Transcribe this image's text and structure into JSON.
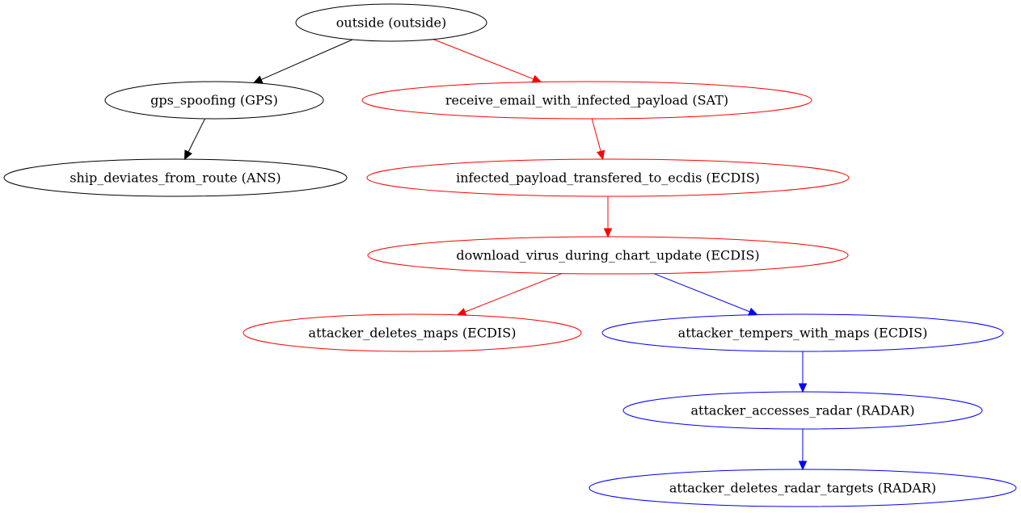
{
  "graph": {
    "nodes": [
      {
        "id": "outside",
        "label": "outside (outside)",
        "color": "#000000"
      },
      {
        "id": "gps_spoofing",
        "label": "gps_spoofing (GPS)",
        "color": "#000000"
      },
      {
        "id": "receive_email",
        "label": "receive_email_with_infected_payload (SAT)",
        "color": "#ff0000"
      },
      {
        "id": "ship_deviates",
        "label": "ship_deviates_from_route (ANS)",
        "color": "#000000"
      },
      {
        "id": "infected_payload",
        "label": "infected_payload_transfered_to_ecdis (ECDIS)",
        "color": "#ff0000"
      },
      {
        "id": "download_virus",
        "label": "download_virus_during_chart_update (ECDIS)",
        "color": "#ff0000"
      },
      {
        "id": "deletes_maps",
        "label": "attacker_deletes_maps (ECDIS)",
        "color": "#ff0000"
      },
      {
        "id": "tempers_maps",
        "label": "attacker_tempers_with_maps (ECDIS)",
        "color": "#0000ff"
      },
      {
        "id": "accesses_radar",
        "label": "attacker_accesses_radar (RADAR)",
        "color": "#0000ff"
      },
      {
        "id": "deletes_radar",
        "label": "attacker_deletes_radar_targets (RADAR)",
        "color": "#0000ff"
      }
    ],
    "edges": [
      {
        "from": "outside",
        "to": "gps_spoofing",
        "color": "#000000"
      },
      {
        "from": "outside",
        "to": "receive_email",
        "color": "#ff0000"
      },
      {
        "from": "gps_spoofing",
        "to": "ship_deviates",
        "color": "#000000"
      },
      {
        "from": "receive_email",
        "to": "infected_payload",
        "color": "#ff0000"
      },
      {
        "from": "infected_payload",
        "to": "download_virus",
        "color": "#ff0000"
      },
      {
        "from": "download_virus",
        "to": "deletes_maps",
        "color": "#ff0000"
      },
      {
        "from": "download_virus",
        "to": "tempers_maps",
        "color": "#0000ff"
      },
      {
        "from": "tempers_maps",
        "to": "accesses_radar",
        "color": "#0000ff"
      },
      {
        "from": "accesses_radar",
        "to": "deletes_radar",
        "color": "#0000ff"
      }
    ]
  }
}
